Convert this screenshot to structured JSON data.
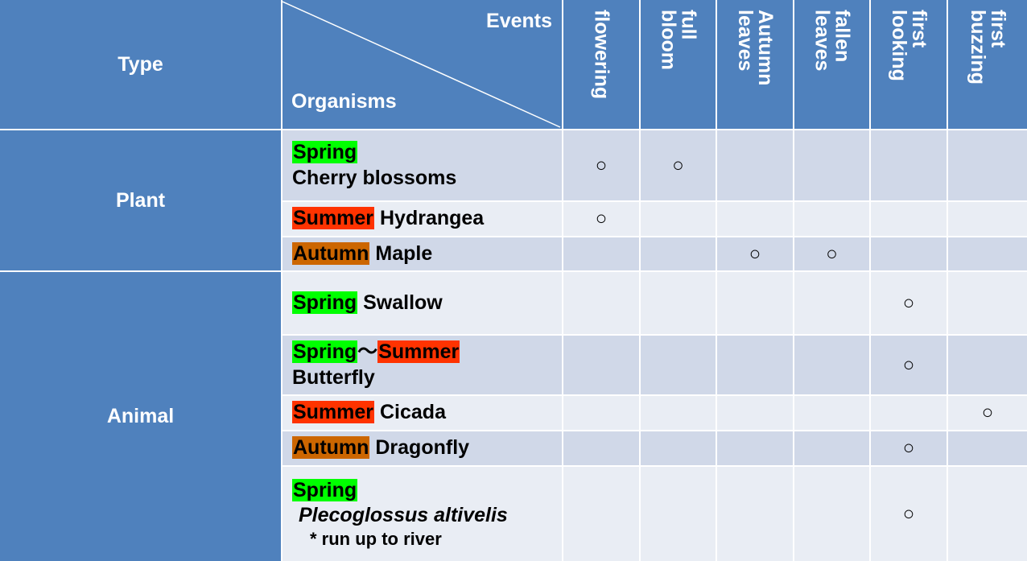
{
  "header": {
    "type_label": "Type",
    "events_label": "Events",
    "organisms_label": "Organisms",
    "events": [
      {
        "label": "flowering"
      },
      {
        "label": "full\nbloom"
      },
      {
        "label": "Autumn\nleaves"
      },
      {
        "label": "fallen\nleaves"
      },
      {
        "label": "first\nlooking"
      },
      {
        "label": "first\nbuzzing"
      }
    ]
  },
  "types": {
    "plant": "Plant",
    "animal": "Animal"
  },
  "mark_symbol": "○",
  "rows": [
    {
      "season": [
        "Spring"
      ],
      "name": "Cherry blossoms",
      "marks": [
        true,
        true,
        false,
        false,
        false,
        false
      ]
    },
    {
      "season": [
        "Summer"
      ],
      "name": "Hydrangea",
      "marks": [
        true,
        false,
        false,
        false,
        false,
        false
      ]
    },
    {
      "season": [
        "Autumn"
      ],
      "name": "Maple",
      "marks": [
        false,
        false,
        true,
        true,
        false,
        false
      ]
    },
    {
      "season": [
        "Spring"
      ],
      "name": "Swallow",
      "marks": [
        false,
        false,
        false,
        false,
        true,
        false
      ]
    },
    {
      "season": [
        "Spring",
        "Summer"
      ],
      "separator": "～",
      "name": "Butterfly",
      "marks": [
        false,
        false,
        false,
        false,
        true,
        false
      ]
    },
    {
      "season": [
        "Summer"
      ],
      "name": "Cicada",
      "marks": [
        false,
        false,
        false,
        false,
        false,
        true
      ]
    },
    {
      "season": [
        "Autumn"
      ],
      "name": "Dragonfly",
      "marks": [
        false,
        false,
        false,
        false,
        true,
        false
      ]
    },
    {
      "season": [
        "Spring"
      ],
      "name": "Plecoglossus altivelis",
      "note": "* run up to river",
      "marks": [
        false,
        false,
        false,
        false,
        true,
        false
      ]
    }
  ],
  "season_colors": {
    "Spring": "#00ff00",
    "Summer": "#ff3300",
    "Autumn": "#cc6600"
  }
}
